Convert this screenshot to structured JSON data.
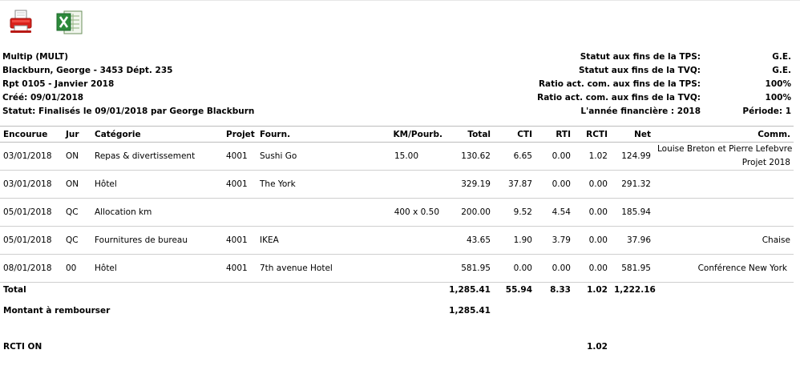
{
  "toolbar": {
    "pdf_icon": "printer-icon",
    "excel_icon": "excel-icon"
  },
  "report": {
    "company": "Multip (MULT)",
    "employee": "Blackburn, George - 3453 Dépt. 235",
    "report": "Rpt 0105 - Janvier 2018",
    "created": "Créé: 09/01/2018",
    "status": "Statut: Finalisés le 09/01/2018 par George Blackburn"
  },
  "info": [
    {
      "label": "Statut aux fins de la TPS:",
      "value": "G.E."
    },
    {
      "label": "Statut aux fins de la TVQ:",
      "value": "G.E."
    },
    {
      "label": "Ratio act. com. aux fins de la TPS:",
      "value": "100%"
    },
    {
      "label": "Ratio act. com. aux fins de la TVQ:",
      "value": "100%"
    },
    {
      "label": "L'année financière : 2018",
      "value": "Période: 1"
    }
  ],
  "columns": {
    "encourue": "Encourue",
    "jur": "Jur",
    "categorie": "Catégorie",
    "projet": "Projet",
    "fourn": "Fourn.",
    "km": "KM/Pourb.",
    "total": "Total",
    "cti": "CTI",
    "rti": "RTI",
    "rcti": "RCTI",
    "net": "Net",
    "comm": "Comm."
  },
  "rows": [
    {
      "date": "03/01/2018",
      "jur": "ON",
      "categorie": "Repas & divertissement",
      "projet": "4001",
      "fourn": "Sushi Go",
      "km": "15.00",
      "total": "130.62",
      "cti": "6.65",
      "rti": "0.00",
      "rcti": "1.02",
      "net": "124.99",
      "comm1": "Louise Breton et Pierre Lefebvre",
      "comm2": "Projet 2018"
    },
    {
      "date": "03/01/2018",
      "jur": "ON",
      "categorie": "Hôtel",
      "projet": "4001",
      "fourn": "The York",
      "km": "",
      "total": "329.19",
      "cti": "37.87",
      "rti": "0.00",
      "rcti": "0.00",
      "net": "291.32",
      "comm1": "",
      "comm2": ""
    },
    {
      "date": "05/01/2018",
      "jur": "QC",
      "categorie": "Allocation km",
      "projet": "",
      "fourn": "",
      "km": "400 x 0.50",
      "total": "200.00",
      "cti": "9.52",
      "rti": "4.54",
      "rcti": "0.00",
      "net": "185.94",
      "comm1": "",
      "comm2": ""
    },
    {
      "date": "05/01/2018",
      "jur": "QC",
      "categorie": "Fournitures de bureau",
      "projet": "4001",
      "fourn": "IKEA",
      "km": "",
      "total": "43.65",
      "cti": "1.90",
      "rti": "3.79",
      "rcti": "0.00",
      "net": "37.96",
      "comm1": "",
      "comm2": "Chaise"
    },
    {
      "date": "08/01/2018",
      "jur": "00",
      "categorie": "Hôtel",
      "projet": "4001",
      "fourn": "7th avenue Hotel",
      "km": "",
      "total": "581.95",
      "cti": "0.00",
      "rti": "0.00",
      "rcti": "0.00",
      "net": "581.95",
      "comm1": "",
      "comm2": "Conférence New York"
    }
  ],
  "totals": {
    "label": "Total",
    "total": "1,285.41",
    "cti": "55.94",
    "rti": "8.33",
    "rcti": "1.02",
    "net": "1,222.16"
  },
  "reimburse": {
    "label": "Montant à rembourser",
    "total": "1,285.41"
  },
  "rcti_on": {
    "label": "RCTI ON",
    "rcti": "1.02"
  }
}
